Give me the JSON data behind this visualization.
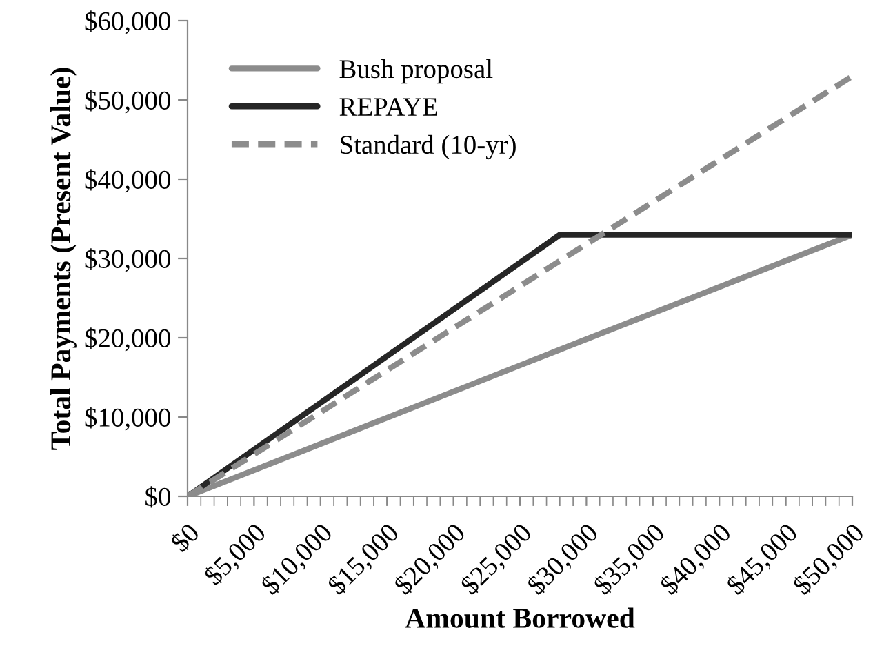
{
  "chart_data": {
    "type": "line",
    "xlabel": "Amount Borrowed",
    "ylabel": "Total Payments (Present Value)",
    "x": [
      0,
      28000,
      50000
    ],
    "series": [
      {
        "name": "Bush proposal",
        "color": "#8c8c8c",
        "values": [
          0,
          18500,
          33000
        ],
        "line_style": "solid"
      },
      {
        "name": "REPAYE",
        "color": "#262626",
        "values": [
          0,
          33000,
          33000
        ],
        "line_style": "solid"
      },
      {
        "name": "Standard (10-yr)",
        "color": "#8c8c8c",
        "values": [
          0,
          29700,
          53000
        ],
        "line_style": "dashed"
      }
    ],
    "xlim": [
      0,
      50000
    ],
    "xticks": [
      {
        "value": 0,
        "label": "$0"
      },
      {
        "value": 5000,
        "label": "$5,000"
      },
      {
        "value": 10000,
        "label": "$10,000"
      },
      {
        "value": 15000,
        "label": "$15,000"
      },
      {
        "value": 20000,
        "label": "$20,000"
      },
      {
        "value": 25000,
        "label": "$25,000"
      },
      {
        "value": 30000,
        "label": "$30,000"
      },
      {
        "value": 35000,
        "label": "$35,000"
      },
      {
        "value": 40000,
        "label": "$40,000"
      },
      {
        "value": 45000,
        "label": "$45,000"
      },
      {
        "value": 50000,
        "label": "$50,000"
      }
    ],
    "ylim": [
      0,
      60000
    ],
    "yticks": [
      {
        "value": 0,
        "label": "$0"
      },
      {
        "value": 10000,
        "label": "$10,000"
      },
      {
        "value": 20000,
        "label": "$20,000"
      },
      {
        "value": 30000,
        "label": "$30,000"
      },
      {
        "value": 40000,
        "label": "$40,000"
      },
      {
        "value": 50000,
        "label": "$50,000"
      },
      {
        "value": 60000,
        "label": "$60,000"
      }
    ],
    "grid": false,
    "legend": "top left"
  }
}
